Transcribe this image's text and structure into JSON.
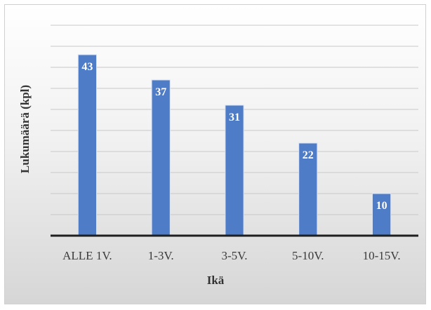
{
  "chart_data": {
    "type": "bar",
    "title": "",
    "xlabel": "Ikä",
    "ylabel": "Lukumäärä (kpl)",
    "categories": [
      "ALLE 1V.",
      "1-3V.",
      "3-5V.",
      "5-10V.",
      "10-15V."
    ],
    "values": [
      43,
      37,
      31,
      22,
      10
    ],
    "ylim": [
      0,
      50
    ],
    "grid": true,
    "legend": "none",
    "data_labels": "inside-top",
    "colors": {
      "bar": "#4f7cc7",
      "bar_edge": "#d7e2f4",
      "axis": "#1f1f1f",
      "grid": "#c8c8c8"
    }
  }
}
